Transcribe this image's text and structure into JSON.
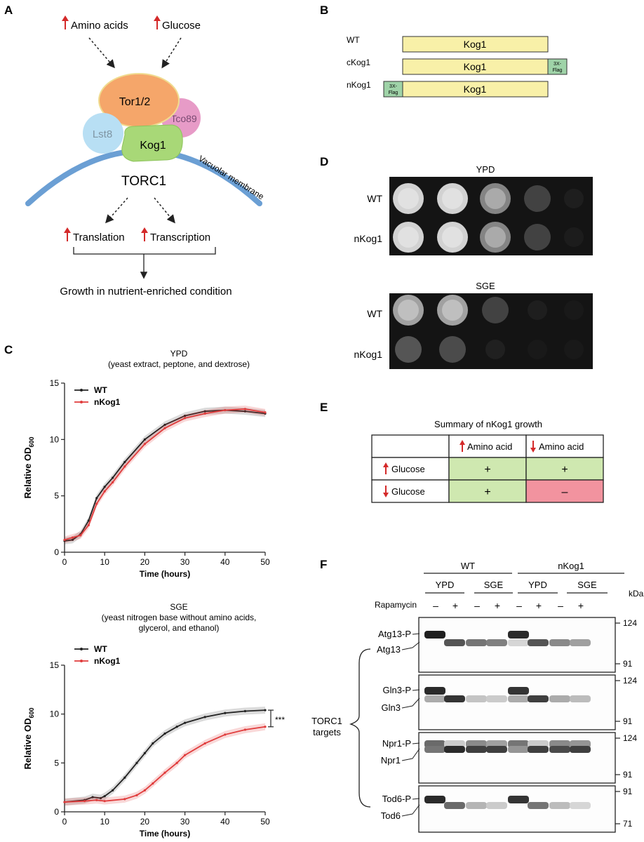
{
  "panel_labels": {
    "a": "A",
    "b": "B",
    "c": "C",
    "d": "D",
    "e": "E",
    "f": "F"
  },
  "panel_a": {
    "inputs": [
      "Amino acids",
      "Glucose"
    ],
    "tor": "Tor1/2",
    "tco": "Tco89",
    "lst": "Lst8",
    "kog": "Kog1",
    "membrane": "Vacuolar membrane",
    "complex": "TORC1",
    "outputs": [
      "Translation",
      "Transcription"
    ],
    "result": "Growth in nutrient-enriched condition"
  },
  "panel_b": {
    "constructs": [
      {
        "name": "WT",
        "protein": "Kog1",
        "tag_side": "none"
      },
      {
        "name": "cKog1",
        "protein": "Kog1",
        "tag_side": "c"
      },
      {
        "name": "nKog1",
        "protein": "Kog1",
        "tag_side": "n"
      }
    ],
    "tag_line1": "3X-",
    "tag_line2": "Flag",
    "colors": {
      "protein": "#f8f0a8",
      "tag": "#9fd3a8"
    }
  },
  "panel_c": {
    "ylabel": "Relative OD",
    "ylabel_sub": "600",
    "xlabel": "Time (hours)",
    "significance": "***",
    "chart_data": [
      {
        "type": "line",
        "title": "YPD",
        "subtitle": [
          "(yeast extract, peptone, and dextrose)"
        ],
        "xlim": [
          0,
          50
        ],
        "ylim": [
          0,
          15
        ],
        "xticks": [
          0,
          10,
          20,
          30,
          40,
          50
        ],
        "yticks": [
          0,
          5,
          10,
          15
        ],
        "series": [
          {
            "name": "WT",
            "color": "#222222",
            "x": [
              0,
              2,
              4,
              6,
              8,
              10,
              12,
              15,
              20,
              25,
              30,
              35,
              40,
              45,
              50
            ],
            "y": [
              1.0,
              1.1,
              1.6,
              2.8,
              4.8,
              5.8,
              6.6,
              8.0,
              10.0,
              11.3,
              12.1,
              12.5,
              12.6,
              12.5,
              12.3
            ]
          },
          {
            "name": "nKog1",
            "color": "#e03c3c",
            "x": [
              0,
              2,
              4,
              6,
              8,
              10,
              12,
              15,
              20,
              25,
              30,
              35,
              40,
              45,
              50
            ],
            "y": [
              1.1,
              1.3,
              1.5,
              2.4,
              4.3,
              5.4,
              6.2,
              7.6,
              9.6,
              11.0,
              11.9,
              12.3,
              12.6,
              12.7,
              12.4
            ]
          }
        ]
      },
      {
        "type": "line",
        "title": "SGE",
        "subtitle": [
          "(yeast nitrogen base without amino acids,",
          "glycerol, and ethanol)"
        ],
        "xlim": [
          0,
          50
        ],
        "ylim": [
          0,
          15
        ],
        "xticks": [
          0,
          10,
          20,
          30,
          40,
          50
        ],
        "yticks": [
          0,
          5,
          10,
          15
        ],
        "series": [
          {
            "name": "WT",
            "color": "#222222",
            "x": [
              0,
              5,
              7,
              9,
              10,
              12,
              15,
              18,
              20,
              22,
              25,
              28,
              30,
              35,
              40,
              45,
              50
            ],
            "y": [
              1.0,
              1.2,
              1.5,
              1.4,
              1.6,
              2.2,
              3.5,
              5.0,
              6.0,
              7.0,
              8.0,
              8.7,
              9.1,
              9.7,
              10.1,
              10.3,
              10.4
            ]
          },
          {
            "name": "nKog1",
            "color": "#e03c3c",
            "x": [
              0,
              5,
              8,
              10,
              15,
              18,
              20,
              22,
              25,
              28,
              30,
              35,
              40,
              45,
              50
            ],
            "y": [
              1.0,
              1.1,
              1.2,
              1.1,
              1.3,
              1.7,
              2.2,
              2.9,
              4.0,
              5.0,
              5.8,
              7.0,
              7.9,
              8.4,
              8.7
            ]
          }
        ]
      }
    ]
  },
  "panel_d": {
    "conditions": [
      "YPD",
      "SGE"
    ],
    "strains": [
      "WT",
      "nKog1"
    ],
    "dilutions": 5
  },
  "panel_e": {
    "title": "Summary of nKog1 growth",
    "col_headers": [
      "Amino acid",
      "Amino acid"
    ],
    "col_dirs": [
      "up",
      "down"
    ],
    "row_headers": [
      "Glucose",
      "Glucose"
    ],
    "row_dirs": [
      "up",
      "down"
    ],
    "cells": [
      [
        "+",
        "+"
      ],
      [
        "+",
        "–"
      ]
    ],
    "colors": {
      "plus": "#cfe8b0",
      "minus": "#f2939f"
    }
  },
  "panel_f": {
    "strains": [
      "WT",
      "nKog1"
    ],
    "media": [
      "YPD",
      "SGE",
      "YPD",
      "SGE"
    ],
    "treatment": "Rapamycin",
    "treat_signs": [
      "–",
      "+",
      "–",
      "+",
      "–",
      "+",
      "–",
      "+"
    ],
    "unit": "kDa",
    "group": [
      "TORC1",
      "targets"
    ],
    "blots": [
      {
        "top": "Atg13-P",
        "bottom": "Atg13",
        "markers": [
          "124",
          "91"
        ]
      },
      {
        "top": "Gln3-P",
        "bottom": "Gln3",
        "markers": [
          "124",
          "91"
        ]
      },
      {
        "top": "Npr1-P",
        "bottom": "Npr1",
        "markers": [
          "124",
          "91"
        ]
      },
      {
        "top": "Tod6-P",
        "bottom": "Tod6",
        "markers": [
          "91",
          "71"
        ]
      }
    ]
  },
  "colors": {
    "red": "#d42a2a",
    "membrane": "#6b9fd4",
    "tor": "#f5a66a",
    "tco": "#e79bc7",
    "lst": "#b8dff4",
    "kog": "#a8d877"
  }
}
